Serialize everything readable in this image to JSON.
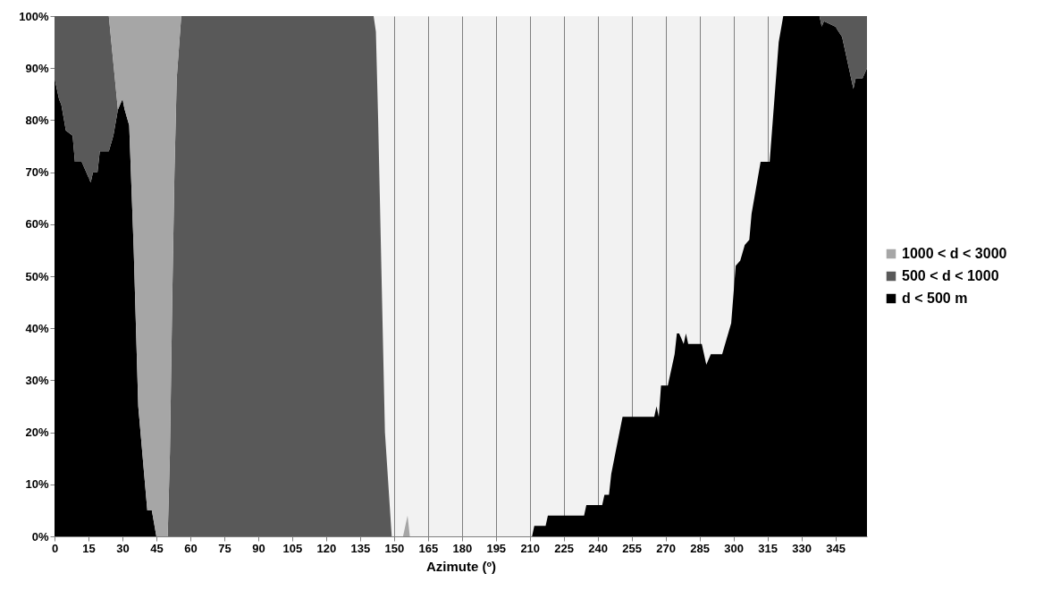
{
  "chart_data": {
    "type": "area",
    "stacked": true,
    "xlabel": "Azimute (º)",
    "grid": "x",
    "legend": "right",
    "x": [
      0,
      2,
      3,
      5,
      8,
      9,
      12,
      14,
      16,
      17,
      19,
      20,
      24,
      26,
      28,
      30,
      31,
      33,
      35,
      37,
      41,
      43,
      45,
      50,
      51,
      52,
      53,
      54,
      56,
      141,
      142,
      143,
      144,
      146,
      149,
      154,
      156,
      157,
      211,
      212,
      217,
      218,
      234,
      235,
      242,
      243,
      245,
      246,
      251,
      265,
      266,
      267,
      268,
      271,
      274,
      275,
      276,
      278,
      279,
      280,
      286,
      288,
      290,
      295,
      299,
      301,
      303,
      305,
      307,
      308,
      312,
      316,
      320,
      322,
      337,
      338,
      339,
      340,
      345,
      348,
      350,
      353,
      354,
      357,
      359
    ],
    "series": [
      {
        "name": "d < 500 m",
        "color": "#000000",
        "values": [
          88,
          84,
          83,
          78,
          77,
          72,
          72,
          70,
          68,
          70,
          70,
          74,
          74,
          77,
          82,
          84,
          82,
          79,
          55,
          25,
          5,
          5,
          0,
          0,
          0,
          0,
          0,
          0,
          0,
          0,
          0,
          0,
          0,
          0,
          0,
          0,
          0,
          0,
          0,
          2,
          2,
          4,
          4,
          6,
          6,
          8,
          8,
          12,
          23,
          23,
          25,
          23,
          29,
          29,
          35,
          39,
          39,
          37,
          39,
          37,
          37,
          33,
          35,
          35,
          41,
          52,
          53,
          56,
          57,
          62,
          72,
          72,
          95,
          100,
          100,
          100,
          98,
          99,
          98,
          96,
          92,
          86,
          88,
          88,
          90
        ]
      },
      {
        "name": "500 < d < 1000",
        "color": "#595959",
        "values": [
          12,
          16,
          17,
          22,
          23,
          28,
          28,
          30,
          32,
          30,
          30,
          26,
          26,
          14,
          0,
          null,
          null,
          null,
          null,
          null,
          null,
          null,
          null,
          0,
          16,
          45,
          70,
          88,
          100,
          100,
          97,
          80,
          60,
          20,
          0,
          null,
          null,
          null,
          null,
          null,
          null,
          null,
          null,
          null,
          null,
          null,
          null,
          null,
          null,
          null,
          null,
          null,
          null,
          null,
          null,
          null,
          null,
          null,
          null,
          null,
          null,
          null,
          null,
          null,
          null,
          null,
          null,
          null,
          null,
          null,
          null,
          null,
          null,
          null,
          null,
          0,
          2,
          1,
          2,
          4,
          8,
          14,
          12,
          12,
          10
        ]
      },
      {
        "name": "1000 < d < 3000",
        "color": "#a6a6a6",
        "values": [
          null,
          null,
          null,
          null,
          null,
          null,
          null,
          null,
          null,
          null,
          null,
          null,
          0,
          9,
          18,
          16,
          18,
          21,
          45,
          75,
          95,
          95,
          100,
          100,
          84,
          55,
          30,
          12,
          0,
          null,
          null,
          null,
          null,
          null,
          null,
          0,
          4,
          0,
          null,
          null,
          null,
          null,
          null,
          null,
          null,
          null,
          null,
          null,
          null,
          null,
          null,
          null,
          null,
          null,
          null,
          null,
          null,
          null,
          null,
          null,
          null,
          null,
          null,
          null,
          null,
          null,
          null,
          null,
          null,
          null,
          null,
          null,
          null,
          null,
          null,
          null,
          null,
          null,
          null,
          null,
          null,
          null,
          null,
          null,
          null
        ]
      }
    ],
    "xlim": [
      0,
      359
    ],
    "xticks": [
      0,
      15,
      30,
      45,
      60,
      75,
      90,
      105,
      120,
      135,
      150,
      165,
      180,
      195,
      210,
      225,
      240,
      255,
      270,
      285,
      300,
      315,
      330,
      345
    ],
    "ylim": [
      0,
      100
    ],
    "yticks": [
      {
        "value": 0,
        "label": "0%"
      },
      {
        "value": 10,
        "label": "10%"
      },
      {
        "value": 20,
        "label": "20%"
      },
      {
        "value": 30,
        "label": "30%"
      },
      {
        "value": 40,
        "label": "40%"
      },
      {
        "value": 50,
        "label": "50%"
      },
      {
        "value": 60,
        "label": "60%"
      },
      {
        "value": 70,
        "label": "70%"
      },
      {
        "value": 80,
        "label": "80%"
      },
      {
        "value": 90,
        "label": "90%"
      },
      {
        "value": 100,
        "label": "100%"
      }
    ]
  }
}
